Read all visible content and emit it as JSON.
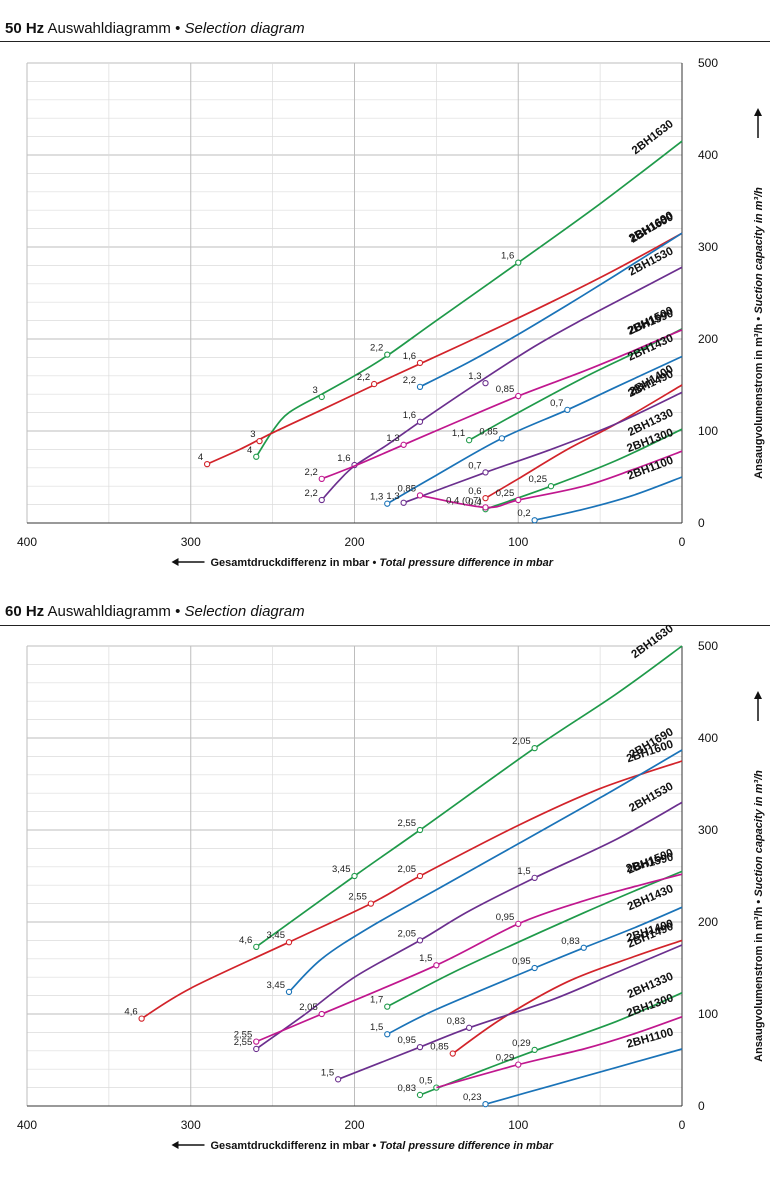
{
  "panels": [
    {
      "title_hz": "50 Hz",
      "title_de": "Auswahldiagramm",
      "title_sep": "•",
      "title_en": "Selection diagram",
      "chart_data": {
        "type": "line",
        "xlabel_de": "Gesamtdruckdifferenz in mbar",
        "xlabel_sep": "•",
        "xlabel_en": "Total pressure difference in mbar",
        "ylabel_de": "Ansaugvolumenstrom in m³/h",
        "ylabel_sep": "•",
        "ylabel_en": "Suction capacity in m³/h",
        "xlim": [
          400,
          0
        ],
        "ylim": [
          0,
          500
        ],
        "x_ticks": [
          400,
          300,
          200,
          100,
          0
        ],
        "y_ticks": [
          0,
          100,
          200,
          300,
          400,
          500
        ],
        "grid": true,
        "series": [
          {
            "name": "2BH1630",
            "color": "#1f9a4a",
            "x": [
              260,
              250,
              240,
              220,
              200,
              180,
              150,
              100,
              50,
              0
            ],
            "y": [
              72,
              100,
              120,
              140,
              160,
              182,
              220,
              283,
              347,
              415
            ],
            "points": [
              {
                "x": 260,
                "y": 72,
                "label": "4"
              },
              {
                "x": 220,
                "y": 137,
                "label": "3"
              },
              {
                "x": 180,
                "y": 183,
                "label": "2,2"
              },
              {
                "x": 100,
                "y": 283,
                "label": "1,6"
              }
            ]
          },
          {
            "name": "2BH1600",
            "color": "#d2232a",
            "x": [
              290,
              270,
              250,
              220,
              188,
              160,
              120,
              80,
              40,
              0
            ],
            "y": [
              64,
              80,
              98,
              123,
              150,
              173,
              206,
              240,
              276,
              315
            ],
            "points": [
              {
                "x": 290,
                "y": 64,
                "label": "4"
              },
              {
                "x": 258,
                "y": 89,
                "label": "3"
              },
              {
                "x": 188,
                "y": 151,
                "label": "2,2"
              },
              {
                "x": 160,
                "y": 174,
                "label": "1,6"
              }
            ]
          },
          {
            "name": "2BH1690",
            "color": "#1a73b8",
            "x": [
              160,
              130,
              100,
              70,
              40,
              0
            ],
            "y": [
              148,
              175,
              205,
              237,
              270,
              315
            ],
            "points": [
              {
                "x": 160,
                "y": 148,
                "label": "2,2"
              }
            ]
          },
          {
            "name": "2BH1530",
            "color": "#6b2f8e",
            "x": [
              220,
              210,
              200,
              180,
              160,
              125,
              90,
              60,
              30,
              0
            ],
            "y": [
              25,
              45,
              62,
              85,
              110,
              152,
              192,
              222,
              250,
              278
            ],
            "points": [
              {
                "x": 220,
                "y": 25,
                "label": "2,2"
              },
              {
                "x": 200,
                "y": 63,
                "label": "1,6"
              },
              {
                "x": 160,
                "y": 110,
                "label": "1,6"
              },
              {
                "x": 120,
                "y": 152,
                "label": "1,3"
              }
            ]
          },
          {
            "name": "2BH1500",
            "color": "#1f9a4a",
            "x": [
              130,
              100,
              60,
              30,
              0
            ],
            "y": [
              90,
              120,
              158,
              184,
              211
            ],
            "points": [
              {
                "x": 130,
                "y": 90,
                "label": "1,1"
              }
            ]
          },
          {
            "name": "2BH1590",
            "color": "#c0178e",
            "x": [
              220,
              200,
              170,
              140,
              100,
              60,
              30,
              0
            ],
            "y": [
              48,
              62,
              85,
              108,
              138,
              165,
              187,
              210
            ],
            "points": [
              {
                "x": 220,
                "y": 48,
                "label": "2,2"
              },
              {
                "x": 170,
                "y": 85,
                "label": "1,3"
              },
              {
                "x": 100,
                "y": 138,
                "label": "0,85"
              }
            ]
          },
          {
            "name": "2BH1430",
            "color": "#1a73b8",
            "x": [
              180,
              150,
              110,
              70,
              40,
              0
            ],
            "y": [
              21,
              52,
              92,
              123,
              148,
              181
            ],
            "points": [
              {
                "x": 180,
                "y": 21,
                "label": "1,3"
              },
              {
                "x": 110,
                "y": 92,
                "label": "0,85"
              },
              {
                "x": 70,
                "y": 123,
                "label": "0,7"
              }
            ]
          },
          {
            "name": "2BH1400",
            "color": "#d2232a",
            "x": [
              120,
              100,
              70,
              40,
              0
            ],
            "y": [
              27,
              48,
              80,
              108,
              150
            ],
            "points": [
              {
                "x": 120,
                "y": 27,
                "label": "0,6"
              }
            ]
          },
          {
            "name": "2BH1490",
            "color": "#6b2f8e",
            "x": [
              170,
              120,
              80,
              40,
              0
            ],
            "y": [
              22,
              55,
              80,
              108,
              142
            ],
            "points": [
              {
                "x": 170,
                "y": 22,
                "label": "1,3"
              },
              {
                "x": 120,
                "y": 55,
                "label": "0,7"
              }
            ]
          },
          {
            "name": "2BH1330",
            "color": "#1f9a4a",
            "x": [
              120,
              80,
              40,
              0
            ],
            "y": [
              15,
              40,
              68,
              102
            ],
            "points": [
              {
                "x": 120,
                "y": 15,
                "label": "0,4"
              },
              {
                "x": 80,
                "y": 40,
                "label": "0,25"
              }
            ]
          },
          {
            "name": "2BH1300",
            "color": "#c0178e",
            "x": [
              160,
              120,
              100,
              60,
              30,
              0
            ],
            "y": [
              30,
              17,
              25,
              40,
              58,
              78
            ],
            "points": [
              {
                "x": 160,
                "y": 30,
                "label": "0,85"
              },
              {
                "x": 120,
                "y": 17,
                "label": "0,4 (0,7)"
              },
              {
                "x": 100,
                "y": 25,
                "label": "0,25"
              }
            ]
          },
          {
            "name": "2BH1100",
            "color": "#1a73b8",
            "x": [
              90,
              60,
              30,
              0
            ],
            "y": [
              3,
              15,
              30,
              50
            ],
            "points": [
              {
                "x": 90,
                "y": 3,
                "label": "0,2"
              }
            ]
          }
        ]
      }
    },
    {
      "title_hz": "60 Hz",
      "title_de": "Auswahldiagramm",
      "title_sep": "•",
      "title_en": "Selection diagram",
      "chart_data": {
        "type": "line",
        "xlabel_de": "Gesamtdruckdifferenz in mbar",
        "xlabel_sep": "•",
        "xlabel_en": "Total pressure difference in mbar",
        "ylabel_de": "Ansaugvolumenstrom in m³/h",
        "ylabel_sep": "•",
        "ylabel_en": "Suction capacity in m³/h",
        "xlim": [
          400,
          0
        ],
        "ylim": [
          0,
          500
        ],
        "x_ticks": [
          400,
          300,
          200,
          100,
          0
        ],
        "y_ticks": [
          0,
          100,
          200,
          300,
          400,
          500
        ],
        "grid": true,
        "series": [
          {
            "name": "2BH1630",
            "color": "#1f9a4a",
            "x": [
              260,
              200,
              160,
              90,
              40,
              0
            ],
            "y": [
              173,
              250,
              300,
              389,
              448,
              500
            ],
            "points": [
              {
                "x": 260,
                "y": 173,
                "label": "4,6"
              },
              {
                "x": 200,
                "y": 250,
                "label": "3,45"
              },
              {
                "x": 160,
                "y": 300,
                "label": "2,55"
              },
              {
                "x": 90,
                "y": 389,
                "label": "2,05"
              }
            ]
          },
          {
            "name": "2BH1600",
            "color": "#d2232a",
            "x": [
              330,
              300,
              240,
              190,
              160,
              100,
              50,
              0
            ],
            "y": [
              95,
              128,
              178,
              220,
              250,
              305,
              345,
              375
            ],
            "points": [
              {
                "x": 330,
                "y": 95,
                "label": "4,6"
              },
              {
                "x": 240,
                "y": 178,
                "label": "3,45"
              },
              {
                "x": 190,
                "y": 220,
                "label": "2,55"
              },
              {
                "x": 160,
                "y": 250,
                "label": "2,05"
              }
            ]
          },
          {
            "name": "2BH1690",
            "color": "#1a73b8",
            "x": [
              240,
              220,
              190,
              150,
              100,
              50,
              0
            ],
            "y": [
              124,
              160,
              195,
              235,
              285,
              335,
              387
            ],
            "points": [
              {
                "x": 240,
                "y": 124,
                "label": "3,45"
              }
            ]
          },
          {
            "name": "2BH1530",
            "color": "#6b2f8e",
            "x": [
              260,
              230,
              200,
              160,
              130,
              90,
              40,
              0
            ],
            "y": [
              62,
              100,
              140,
              180,
              212,
              248,
              290,
              330
            ],
            "points": [
              {
                "x": 260,
                "y": 62,
                "label": "2,55"
              },
              {
                "x": 160,
                "y": 180,
                "label": "2,05"
              },
              {
                "x": 90,
                "y": 248,
                "label": "1,5"
              }
            ]
          },
          {
            "name": "2BH1500",
            "color": "#1f9a4a",
            "x": [
              180,
              140,
              100,
              60,
              30,
              0
            ],
            "y": [
              108,
              145,
              178,
              210,
              233,
              255
            ],
            "points": [
              {
                "x": 180,
                "y": 108,
                "label": "1,7"
              }
            ]
          },
          {
            "name": "2BH1590",
            "color": "#c0178e",
            "x": [
              260,
              220,
              150,
              100,
              60,
              30,
              0
            ],
            "y": [
              70,
              100,
              153,
              198,
              223,
              238,
              252
            ],
            "points": [
              {
                "x": 260,
                "y": 70,
                "label": "2,55"
              },
              {
                "x": 220,
                "y": 100,
                "label": "2,05"
              },
              {
                "x": 150,
                "y": 153,
                "label": "1,5"
              },
              {
                "x": 100,
                "y": 198,
                "label": "0,95"
              }
            ]
          },
          {
            "name": "2BH1430",
            "color": "#1a73b8",
            "x": [
              180,
              150,
              90,
              60,
              30,
              0
            ],
            "y": [
              78,
              105,
              150,
              172,
              193,
              216
            ],
            "points": [
              {
                "x": 180,
                "y": 78,
                "label": "1,5"
              },
              {
                "x": 90,
                "y": 150,
                "label": "0,95"
              },
              {
                "x": 60,
                "y": 172,
                "label": "0,83"
              }
            ]
          },
          {
            "name": "2BH1400",
            "color": "#d2232a",
            "x": [
              140,
              110,
              70,
              30,
              0
            ],
            "y": [
              57,
              95,
              135,
              162,
              180
            ],
            "points": [
              {
                "x": 140,
                "y": 57,
                "label": "0,85"
              }
            ]
          },
          {
            "name": "2BH1490",
            "color": "#6b2f8e",
            "x": [
              210,
              160,
              130,
              80,
              40,
              0
            ],
            "y": [
              29,
              64,
              85,
              115,
              145,
              175
            ],
            "points": [
              {
                "x": 210,
                "y": 29,
                "label": "1,5"
              },
              {
                "x": 160,
                "y": 64,
                "label": "0,95"
              },
              {
                "x": 130,
                "y": 85,
                "label": "0,83"
              }
            ]
          },
          {
            "name": "2BH1330",
            "color": "#1f9a4a",
            "x": [
              160,
              120,
              90,
              40,
              0
            ],
            "y": [
              12,
              40,
              60,
              92,
              123
            ],
            "points": [
              {
                "x": 160,
                "y": 12,
                "label": "0,83"
              },
              {
                "x": 150,
                "y": 20,
                "label": "0,5"
              },
              {
                "x": 90,
                "y": 61,
                "label": "0,29"
              }
            ]
          },
          {
            "name": "2BH1300",
            "color": "#c0178e",
            "x": [
              150,
              100,
              60,
              30,
              0
            ],
            "y": [
              20,
              45,
              62,
              78,
              97
            ],
            "points": [
              {
                "x": 100,
                "y": 45,
                "label": "0,29"
              }
            ]
          },
          {
            "name": "2BH1100",
            "color": "#1a73b8",
            "x": [
              120,
              80,
              40,
              0
            ],
            "y": [
              2,
              22,
              42,
              62
            ],
            "points": [
              {
                "x": 120,
                "y": 2,
                "label": "0,23"
              }
            ]
          }
        ]
      }
    }
  ]
}
